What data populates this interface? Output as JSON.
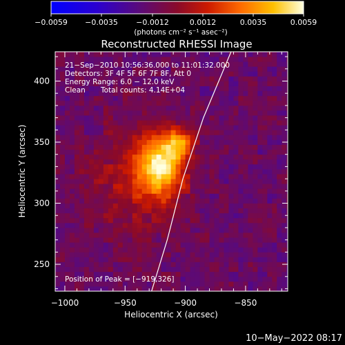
{
  "chart_data": {
    "type": "heatmap",
    "title": "Reconstructed RHESSI Image",
    "xlabel": "Heliocentric X (arcsec)",
    "ylabel": "Heliocentric Y (arcsec)",
    "xlim": [
      -1008,
      -815
    ],
    "ylim": [
      228,
      424
    ],
    "x_ticks": [
      -1000,
      -950,
      -900,
      -850
    ],
    "x_tick_labels": [
      "−1000",
      "−950",
      "−900",
      "−850"
    ],
    "y_ticks": [
      250,
      300,
      350,
      400
    ],
    "y_tick_labels": [
      "250",
      "300",
      "350",
      "400"
    ],
    "colorbar": {
      "range": [
        -0.0059,
        0.0059
      ],
      "tick_labels": [
        "−0.0059",
        "−0.0035",
        "−0.0012",
        "0.0012",
        "0.0035",
        "0.0059"
      ],
      "unit_label": "(photons cm⁻² s⁻¹ asec⁻²)"
    },
    "sources": [
      {
        "x": -920,
        "y": 332,
        "sigma_x": 14,
        "sigma_y": 20,
        "amplitude": 0.0058
      },
      {
        "x": -905,
        "y": 348,
        "sigma_x": 8,
        "sigma_y": 7,
        "amplitude": 0.0032
      },
      {
        "x": -945,
        "y": 320,
        "sigma_x": 25,
        "sigma_y": 30,
        "amplitude": 0.0018
      }
    ],
    "limb_curve": [
      [
        -928,
        228
      ],
      [
        -915,
        270
      ],
      [
        -902,
        320
      ],
      [
        -885,
        370
      ],
      [
        -862,
        424
      ]
    ],
    "peak_position": [
      -919,
      326
    ]
  },
  "annotations": {
    "time_range": "21−Sep−2010 10:56:36.000 to 11:01:32.000",
    "detectors": "Detectors: 3F 4F 5F 6F 7F 8F, Att 0",
    "energy_range": "Energy Range: 6.0 − 12.0 keV",
    "algorithm": "Clean",
    "total_counts": "Total counts: 4.14E+04",
    "peak_label": "Position of Peak = [−919,326]"
  },
  "footer_timestamp": "10−May−2022 08:17"
}
